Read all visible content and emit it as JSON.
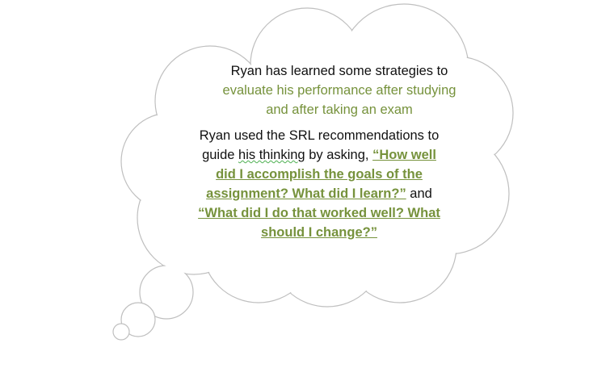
{
  "para1": {
    "line1": "Ryan has learned some strategies to",
    "line2": "evaluate his performance after studying",
    "line3": "and after taking an exam"
  },
  "para2": {
    "line1": "Ryan used the SRL recommendations to",
    "line2_a": "guide ",
    "line2_squiggle": "his thinking",
    "line2_b": " by asking, ",
    "line2_q": "“How well",
    "line3": "did I accomplish the goals of the",
    "line4_q": "assignment? What did I learn?”",
    "line4_b": " and",
    "line5": "“What did I do that worked well? What",
    "line6": "should I change?”"
  },
  "colors": {
    "accent_green": "#76923c",
    "outline": "#bfbfbf"
  }
}
